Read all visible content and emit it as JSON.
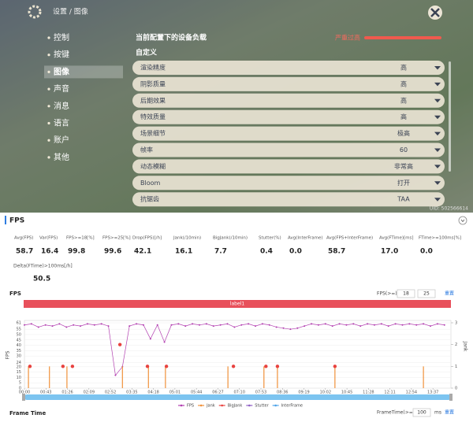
{
  "game": {
    "breadcrumb": "设置 / 图像",
    "menu": [
      "控制",
      "按键",
      "图像",
      "声音",
      "消息",
      "语言",
      "账户",
      "其他"
    ],
    "load_title": "当前配置下的设备负载",
    "load_level": "严重过高",
    "preset": "自定义",
    "settings": [
      {
        "label": "渲染精度",
        "value": "高"
      },
      {
        "label": "阴影质量",
        "value": "高"
      },
      {
        "label": "后期效果",
        "value": "高"
      },
      {
        "label": "特效质量",
        "value": "高"
      },
      {
        "label": "场景细节",
        "value": "极高"
      },
      {
        "label": "帧率",
        "value": "60"
      },
      {
        "label": "动态模糊",
        "value": "非常高"
      },
      {
        "label": "Bloom",
        "value": "打开"
      },
      {
        "label": "抗锯齿",
        "value": "TAA"
      }
    ],
    "uid": "UID: 502566614"
  },
  "report": {
    "title": "FPS",
    "stats": [
      {
        "label": "Avg(FPS)",
        "value": "58.7"
      },
      {
        "label": "Var(FPS)",
        "value": "16.4"
      },
      {
        "label": "FPS>=18[%]",
        "value": "99.8"
      },
      {
        "label": "FPS>=25[%]",
        "value": "99.6"
      },
      {
        "label": "Drop(FPS)[/h]",
        "value": "42.1"
      },
      {
        "label": "Jank(/10min)",
        "value": "16.1"
      },
      {
        "label": "BigJank(/10min)",
        "value": "7.7"
      },
      {
        "label": "Stutter(%)",
        "value": "0.4"
      },
      {
        "label": "Avg(InterFrame)",
        "value": "0.0"
      },
      {
        "label": "Avg(FPS+InterFrame)",
        "value": "58.7"
      },
      {
        "label": "Avg(FTime)[ms]",
        "value": "17.0"
      },
      {
        "label": "FTime>=100ms[%]",
        "value": "0.0"
      }
    ],
    "delta": {
      "label": "Delta(FTime)>100ms[/h]",
      "value": "50.5"
    },
    "fps_controls": {
      "label": "FPS(>=)",
      "thresholds": [
        "18",
        "25"
      ],
      "reset": "重置"
    },
    "frame_time": {
      "title": "Frame Time",
      "label": "FrameTime(>=)",
      "threshold": "100",
      "unit": "ms",
      "reset": "重置"
    }
  },
  "chart_data": {
    "type": "line",
    "title": "FPS",
    "band_label": "label1",
    "y_label": "FPS",
    "y2_label": "Jank",
    "xlim": [
      0,
      853
    ],
    "xticks": [
      {
        "value": 0,
        "label": "00:00"
      },
      {
        "value": 43,
        "label": "00:43"
      },
      {
        "value": 86,
        "label": "01:26"
      },
      {
        "value": 129,
        "label": "02:09"
      },
      {
        "value": 172,
        "label": "02:52"
      },
      {
        "value": 215,
        "label": "03:35"
      },
      {
        "value": 258,
        "label": "04:18"
      },
      {
        "value": 301,
        "label": "05:01"
      },
      {
        "value": 344,
        "label": "05:44"
      },
      {
        "value": 387,
        "label": "06:27"
      },
      {
        "value": 430,
        "label": "07:10"
      },
      {
        "value": 473,
        "label": "07:53"
      },
      {
        "value": 516,
        "label": "08:36"
      },
      {
        "value": 559,
        "label": "09:19"
      },
      {
        "value": 602,
        "label": "10:02"
      },
      {
        "value": 645,
        "label": "10:45"
      },
      {
        "value": 688,
        "label": "11:28"
      },
      {
        "value": 731,
        "label": "12:11"
      },
      {
        "value": 774,
        "label": "12:54"
      },
      {
        "value": 817,
        "label": "13:37"
      }
    ],
    "ylim": [
      0,
      61
    ],
    "yticks": [
      0,
      5,
      10,
      15,
      20,
      24,
      30,
      35,
      40,
      45,
      50,
      55,
      61
    ],
    "y2lim": [
      0,
      3
    ],
    "y2ticks": [
      0,
      1,
      2,
      3
    ],
    "series": [
      {
        "name": "FPS",
        "color": "#b23fb0",
        "x": [
          0,
          14,
          28,
          42,
          56,
          70,
          84,
          98,
          112,
          126,
          140,
          154,
          168,
          182,
          196,
          210,
          224,
          238,
          252,
          266,
          280,
          294,
          308,
          322,
          336,
          350,
          364,
          378,
          392,
          406,
          420,
          434,
          448,
          462,
          476,
          490,
          504,
          518,
          532,
          546,
          560,
          574,
          588,
          602,
          616,
          630,
          644,
          658,
          672,
          686,
          700,
          714,
          728,
          742,
          756,
          770,
          784,
          798,
          812,
          826,
          840
        ],
        "values": [
          59,
          60,
          57,
          59,
          58,
          60,
          57,
          59,
          58,
          60,
          59,
          60,
          58,
          12,
          20,
          58,
          60,
          59,
          46,
          59,
          43,
          59,
          60,
          58,
          60,
          59,
          60,
          58,
          59,
          60,
          57,
          59,
          60,
          58,
          60,
          59,
          57,
          56,
          55,
          56,
          58,
          60,
          59,
          60,
          58,
          60,
          59,
          60,
          58,
          60,
          59,
          60,
          58,
          60,
          59,
          60,
          59,
          60,
          58,
          60,
          59
        ]
      },
      {
        "name": "Jank",
        "color": "#f0913a",
        "axis": "y2",
        "x": [
          8,
          50,
          85,
          196,
          248,
          282,
          407,
          479,
          506,
          621,
          798
        ],
        "values": [
          1,
          1,
          1,
          1,
          1,
          1,
          1,
          1,
          1,
          1,
          1
        ]
      },
      {
        "name": "BigJank",
        "color": "#e8423f",
        "axis": "y2",
        "x": [
          11,
          77,
          96,
          191,
          246,
          284,
          418,
          483,
          506,
          621
        ],
        "values": [
          1,
          1,
          1,
          2,
          1,
          1,
          1,
          1,
          1,
          1
        ]
      },
      {
        "name": "Stutter",
        "color": "#8e5fc4",
        "axis": "y2",
        "x": [],
        "values": []
      },
      {
        "name": "InterFrame",
        "color": "#4da3e8",
        "axis": "y2",
        "x": [],
        "values": []
      }
    ]
  }
}
